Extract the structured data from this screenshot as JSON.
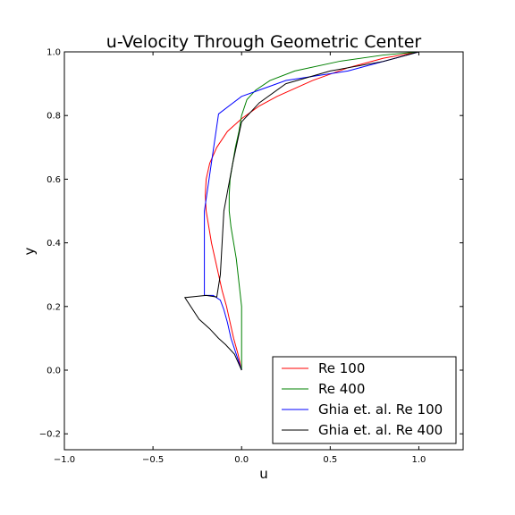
{
  "chart_data": {
    "type": "line",
    "title": "u-Velocity Through Geometric Center",
    "xlabel": "u",
    "ylabel": "y",
    "xlim": [
      -1.0,
      1.25
    ],
    "ylim": [
      -0.25,
      1.0
    ],
    "xticks": [
      -1.0,
      -0.5,
      0.0,
      0.5,
      1.0
    ],
    "yticks": [
      -0.2,
      0.0,
      0.2,
      0.4,
      0.6,
      0.8,
      1.0
    ],
    "xtick_labels": [
      "−1.0",
      "−0.5",
      "0.0",
      "0.5",
      "1.0"
    ],
    "ytick_labels": [
      "−0.2",
      "0.0",
      "0.2",
      "0.4",
      "0.6",
      "0.8",
      "1.0"
    ],
    "grid": false,
    "legend_position": "bottom-right",
    "series": [
      {
        "name": "Re 100",
        "color": "#ff0000",
        "points": [
          [
            0.0,
            0.0
          ],
          [
            -0.02,
            0.05
          ],
          [
            -0.045,
            0.1
          ],
          [
            -0.065,
            0.15
          ],
          [
            -0.085,
            0.2
          ],
          [
            -0.11,
            0.25
          ],
          [
            -0.13,
            0.3
          ],
          [
            -0.15,
            0.35
          ],
          [
            -0.17,
            0.4
          ],
          [
            -0.185,
            0.45
          ],
          [
            -0.2,
            0.5
          ],
          [
            -0.205,
            0.55
          ],
          [
            -0.2,
            0.6
          ],
          [
            -0.18,
            0.65
          ],
          [
            -0.14,
            0.7
          ],
          [
            -0.08,
            0.75
          ],
          [
            0.0,
            0.79
          ],
          [
            0.1,
            0.83
          ],
          [
            0.2,
            0.86
          ],
          [
            0.3,
            0.885
          ],
          [
            0.4,
            0.91
          ],
          [
            0.5,
            0.93
          ],
          [
            0.6,
            0.95
          ],
          [
            0.7,
            0.965
          ],
          [
            0.8,
            0.98
          ],
          [
            0.9,
            0.99
          ],
          [
            1.0,
            1.0
          ]
        ]
      },
      {
        "name": "Re 400",
        "color": "#008000",
        "points": [
          [
            0.0,
            0.0
          ],
          [
            0.0,
            0.1
          ],
          [
            0.0,
            0.2
          ],
          [
            -0.01,
            0.25
          ],
          [
            -0.02,
            0.3
          ],
          [
            -0.03,
            0.35
          ],
          [
            -0.045,
            0.4
          ],
          [
            -0.06,
            0.45
          ],
          [
            -0.07,
            0.5
          ],
          [
            -0.07,
            0.55
          ],
          [
            -0.065,
            0.6
          ],
          [
            -0.05,
            0.65
          ],
          [
            -0.035,
            0.7
          ],
          [
            -0.015,
            0.75
          ],
          [
            0.0,
            0.8
          ],
          [
            0.03,
            0.85
          ],
          [
            0.08,
            0.88
          ],
          [
            0.16,
            0.91
          ],
          [
            0.3,
            0.94
          ],
          [
            0.55,
            0.97
          ],
          [
            0.8,
            0.99
          ],
          [
            1.0,
            1.0
          ]
        ]
      },
      {
        "name": "Ghia et. al. Re 100",
        "color": "#0000ff",
        "points": [
          [
            0.0,
            0.0
          ],
          [
            -0.03,
            0.05
          ],
          [
            -0.06,
            0.1
          ],
          [
            -0.08,
            0.15
          ],
          [
            -0.1,
            0.19
          ],
          [
            -0.12,
            0.22
          ],
          [
            -0.16,
            0.235
          ],
          [
            -0.21,
            0.235
          ],
          [
            -0.21,
            0.5
          ],
          [
            -0.13,
            0.805
          ],
          [
            0.0,
            0.86
          ],
          [
            0.1,
            0.88
          ],
          [
            0.25,
            0.91
          ],
          [
            0.6,
            0.94
          ],
          [
            1.0,
            1.0
          ]
        ]
      },
      {
        "name": "Ghia et. al. Re 400",
        "color": "#000000",
        "points": [
          [
            0.0,
            0.0
          ],
          [
            -0.04,
            0.05
          ],
          [
            -0.09,
            0.08
          ],
          [
            -0.13,
            0.1
          ],
          [
            -0.18,
            0.13
          ],
          [
            -0.24,
            0.16
          ],
          [
            -0.32,
            0.228
          ],
          [
            -0.25,
            0.232
          ],
          [
            -0.2,
            0.235
          ],
          [
            -0.14,
            0.23
          ],
          [
            -0.12,
            0.3
          ],
          [
            -0.1,
            0.5
          ],
          [
            -0.05,
            0.65
          ],
          [
            0.0,
            0.78
          ],
          [
            0.1,
            0.84
          ],
          [
            0.25,
            0.9
          ],
          [
            0.5,
            0.94
          ],
          [
            0.8,
            0.97
          ],
          [
            1.0,
            1.0
          ]
        ]
      }
    ]
  }
}
